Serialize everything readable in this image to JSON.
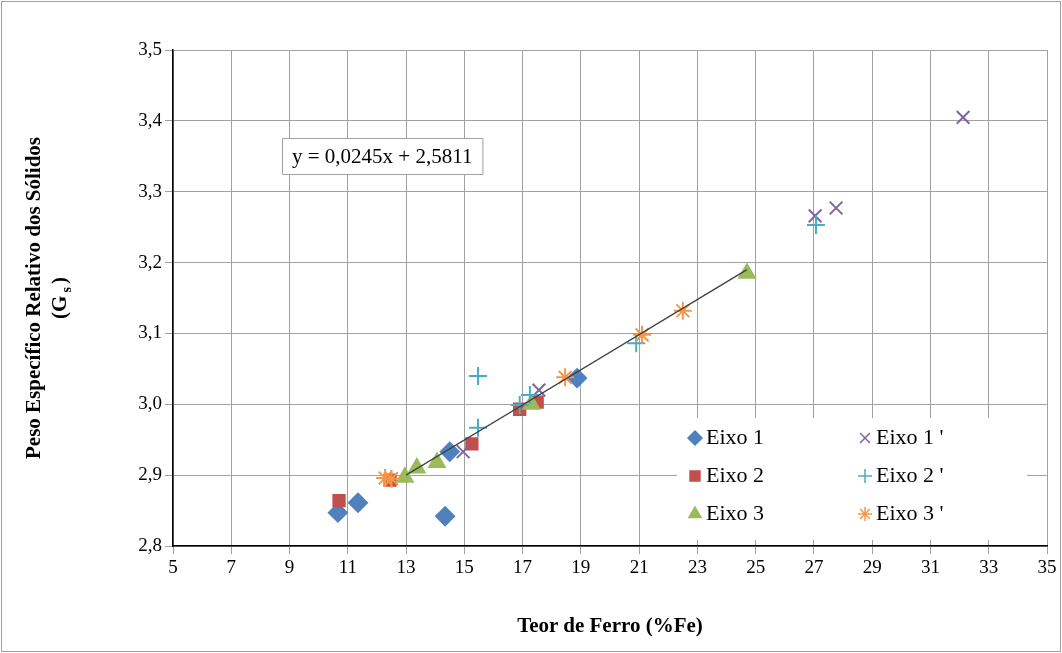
{
  "chart_data": {
    "type": "scatter",
    "xlabel": "Teor de Ferro (%Fe)",
    "ylabel": "Peso Específico Relativo dos Sólidos (G$_{s}$)",
    "annotations": [
      "y = 0,0245x + 2,5811"
    ],
    "xlim": [
      5,
      35
    ],
    "xticks": [
      5,
      7,
      9,
      11,
      13,
      15,
      17,
      19,
      21,
      23,
      25,
      27,
      29,
      31,
      33,
      35
    ],
    "ylim": [
      2.8,
      3.5
    ],
    "yticks": [
      {
        "value": 2.8,
        "label": "2,8"
      },
      {
        "value": 2.9,
        "label": "2,9"
      },
      {
        "value": 3.0,
        "label": "3,0"
      },
      {
        "value": 3.1,
        "label": "3,1"
      },
      {
        "value": 3.2,
        "label": "3,2"
      },
      {
        "value": 3.3,
        "label": "3,3"
      },
      {
        "value": 3.4,
        "label": "3,4"
      },
      {
        "value": 3.5,
        "label": "3,5"
      }
    ],
    "grid": true,
    "legend": "bottom right",
    "series": [
      {
        "name": "Eixo 1",
        "color": "#4f81bd",
        "marker": "diamond",
        "x": [
          10.66,
          11.35,
          14.34,
          14.5,
          18.87
        ],
        "values": [
          2.847,
          2.861,
          2.842,
          2.933,
          3.037
        ]
      },
      {
        "name": "Eixo 2",
        "color": "#c0504d",
        "marker": "square",
        "x": [
          10.7,
          12.45,
          15.26,
          16.9,
          17.5
        ],
        "values": [
          2.864,
          2.893,
          2.944,
          2.993,
          3.003
        ]
      },
      {
        "name": "Eixo 3",
        "color": "#9bbb59",
        "marker": "triangle",
        "x": [
          12.96,
          13.37,
          14.06,
          17.3,
          24.7
        ],
        "values": [
          2.897,
          2.91,
          2.918,
          3.0,
          3.185
        ]
      },
      {
        "name": "Eixo 1 '",
        "color": "#8064a2",
        "marker": "cross",
        "x": [
          14.96,
          17.56,
          27.04,
          27.76,
          32.12
        ],
        "values": [
          2.933,
          3.02,
          3.266,
          3.277,
          3.405
        ]
      },
      {
        "name": "Eixo 2 '",
        "color": "#4bacc6",
        "marker": "cross",
        "x": [
          15.47,
          15.47,
          16.9,
          17.25,
          20.9,
          27.07
        ],
        "values": [
          3.04,
          2.967,
          2.999,
          3.013,
          3.086,
          3.253
        ]
      },
      {
        "name": "Eixo 3 '",
        "color": "#f79646",
        "marker": "cross",
        "x": [
          12.28,
          12.5,
          18.46,
          21.1,
          22.5
        ],
        "values": [
          2.896,
          2.895,
          3.038,
          3.098,
          3.132
        ]
      },
      {
        "type": "line",
        "color": "#404040",
        "marker": "none",
        "line_style": "solid",
        "x": [
          13,
          24.7
        ],
        "values": [
          2.9,
          3.19
        ]
      }
    ]
  }
}
